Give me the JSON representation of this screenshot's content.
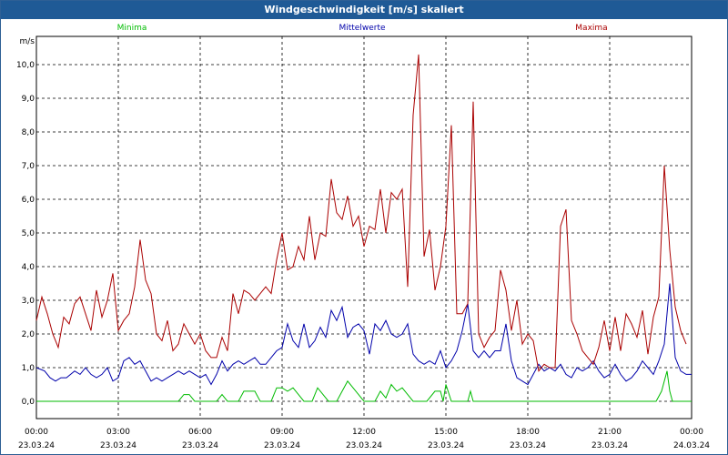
{
  "window": {
    "title": "Windgeschwindigkeit [m/s] skaliert"
  },
  "colors": {
    "min": "#00bb00",
    "mean": "#0000aa",
    "max": "#aa0000",
    "titlebar": "#1f5a96"
  },
  "chart_data": {
    "type": "line",
    "title": "Windgeschwindigkeit [m/s] skaliert",
    "ylabel": "m/s",
    "xlabel": "",
    "ylim": [
      0,
      10.5
    ],
    "xlim": [
      0,
      24
    ],
    "grid": true,
    "legend_placement": "top",
    "y_ticks": [
      "0,0",
      "1,0",
      "2,0",
      "3,0",
      "4,0",
      "5,0",
      "6,0",
      "7,0",
      "8,0",
      "9,0",
      "10,0"
    ],
    "x_ticks": [
      {
        "time": "00:00",
        "date": "23.03.24"
      },
      {
        "time": "03:00",
        "date": "23.03.24"
      },
      {
        "time": "06:00",
        "date": "23.03.24"
      },
      {
        "time": "09:00",
        "date": "23.03.24"
      },
      {
        "time": "12:00",
        "date": "23.03.24"
      },
      {
        "time": "15:00",
        "date": "23.03.24"
      },
      {
        "time": "18:00",
        "date": "23.03.24"
      },
      {
        "time": "21:00",
        "date": "23.03.24"
      },
      {
        "time": "00:00",
        "date": "24.03.24"
      }
    ],
    "series": [
      {
        "name": "Minima",
        "color": "#00bb00",
        "points": [
          [
            0,
            0
          ],
          [
            5.2,
            0
          ],
          [
            5.4,
            0.2
          ],
          [
            5.6,
            0.2
          ],
          [
            5.8,
            0
          ],
          [
            6.6,
            0
          ],
          [
            6.8,
            0.2
          ],
          [
            7.0,
            0
          ],
          [
            7.4,
            0
          ],
          [
            7.6,
            0.3
          ],
          [
            7.8,
            0.3
          ],
          [
            8.0,
            0.3
          ],
          [
            8.2,
            0
          ],
          [
            8.6,
            0
          ],
          [
            8.8,
            0.4
          ],
          [
            9.0,
            0.4
          ],
          [
            9.2,
            0.3
          ],
          [
            9.4,
            0.4
          ],
          [
            9.6,
            0.2
          ],
          [
            9.8,
            0
          ],
          [
            10.1,
            0
          ],
          [
            10.3,
            0.4
          ],
          [
            10.5,
            0.2
          ],
          [
            10.7,
            0
          ],
          [
            11.0,
            0
          ],
          [
            11.2,
            0.3
          ],
          [
            11.4,
            0.6
          ],
          [
            11.6,
            0.4
          ],
          [
            11.8,
            0.2
          ],
          [
            12.0,
            0
          ],
          [
            12.4,
            0
          ],
          [
            12.6,
            0.3
          ],
          [
            12.8,
            0.1
          ],
          [
            13.0,
            0.5
          ],
          [
            13.2,
            0.3
          ],
          [
            13.4,
            0.4
          ],
          [
            13.6,
            0.2
          ],
          [
            13.8,
            0
          ],
          [
            14.3,
            0
          ],
          [
            14.6,
            0.3
          ],
          [
            14.8,
            0.3
          ],
          [
            14.9,
            0
          ],
          [
            15.0,
            0.5
          ],
          [
            15.2,
            0
          ],
          [
            15.8,
            0
          ],
          [
            15.9,
            0.3
          ],
          [
            16.0,
            0
          ],
          [
            22.7,
            0
          ],
          [
            22.9,
            0.3
          ],
          [
            23.1,
            0.9
          ],
          [
            23.2,
            0.3
          ],
          [
            23.3,
            0
          ],
          [
            24,
            0
          ]
        ]
      },
      {
        "name": "Mittelwerte",
        "color": "#0000aa",
        "points": [
          [
            0,
            1.0
          ],
          [
            0.3,
            0.9
          ],
          [
            0.5,
            0.7
          ],
          [
            0.7,
            0.6
          ],
          [
            0.9,
            0.7
          ],
          [
            1.1,
            0.7
          ],
          [
            1.4,
            0.9
          ],
          [
            1.6,
            0.8
          ],
          [
            1.8,
            1.0
          ],
          [
            2.0,
            0.8
          ],
          [
            2.2,
            0.7
          ],
          [
            2.4,
            0.8
          ],
          [
            2.6,
            1.0
          ],
          [
            2.8,
            0.6
          ],
          [
            3.0,
            0.7
          ],
          [
            3.2,
            1.2
          ],
          [
            3.4,
            1.3
          ],
          [
            3.6,
            1.1
          ],
          [
            3.8,
            1.2
          ],
          [
            4.0,
            0.9
          ],
          [
            4.2,
            0.6
          ],
          [
            4.4,
            0.7
          ],
          [
            4.6,
            0.6
          ],
          [
            4.8,
            0.7
          ],
          [
            5.0,
            0.8
          ],
          [
            5.2,
            0.9
          ],
          [
            5.4,
            0.8
          ],
          [
            5.6,
            0.9
          ],
          [
            5.8,
            0.8
          ],
          [
            6.0,
            0.7
          ],
          [
            6.2,
            0.8
          ],
          [
            6.4,
            0.5
          ],
          [
            6.6,
            0.8
          ],
          [
            6.8,
            1.2
          ],
          [
            7.0,
            0.9
          ],
          [
            7.2,
            1.1
          ],
          [
            7.4,
            1.2
          ],
          [
            7.6,
            1.1
          ],
          [
            7.8,
            1.2
          ],
          [
            8.0,
            1.3
          ],
          [
            8.2,
            1.1
          ],
          [
            8.4,
            1.1
          ],
          [
            8.6,
            1.3
          ],
          [
            8.8,
            1.5
          ],
          [
            9.0,
            1.6
          ],
          [
            9.2,
            2.3
          ],
          [
            9.4,
            1.8
          ],
          [
            9.6,
            1.6
          ],
          [
            9.8,
            2.3
          ],
          [
            10.0,
            1.6
          ],
          [
            10.2,
            1.8
          ],
          [
            10.4,
            2.2
          ],
          [
            10.6,
            1.9
          ],
          [
            10.8,
            2.7
          ],
          [
            11.0,
            2.4
          ],
          [
            11.2,
            2.8
          ],
          [
            11.4,
            1.9
          ],
          [
            11.6,
            2.2
          ],
          [
            11.8,
            2.3
          ],
          [
            12.0,
            2.1
          ],
          [
            12.2,
            1.4
          ],
          [
            12.4,
            2.3
          ],
          [
            12.6,
            2.1
          ],
          [
            12.8,
            2.4
          ],
          [
            13.0,
            2.0
          ],
          [
            13.2,
            1.9
          ],
          [
            13.4,
            2.0
          ],
          [
            13.6,
            2.3
          ],
          [
            13.8,
            1.4
          ],
          [
            14.0,
            1.2
          ],
          [
            14.2,
            1.1
          ],
          [
            14.4,
            1.2
          ],
          [
            14.6,
            1.1
          ],
          [
            14.8,
            1.5
          ],
          [
            15.0,
            1.0
          ],
          [
            15.2,
            1.2
          ],
          [
            15.4,
            1.5
          ],
          [
            15.6,
            2.1
          ],
          [
            15.8,
            2.9
          ],
          [
            16.0,
            1.5
          ],
          [
            16.2,
            1.3
          ],
          [
            16.4,
            1.5
          ],
          [
            16.6,
            1.3
          ],
          [
            16.8,
            1.5
          ],
          [
            17.0,
            1.5
          ],
          [
            17.2,
            2.3
          ],
          [
            17.4,
            1.2
          ],
          [
            17.6,
            0.7
          ],
          [
            17.8,
            0.6
          ],
          [
            18.0,
            0.5
          ],
          [
            18.2,
            0.8
          ],
          [
            18.4,
            1.1
          ],
          [
            18.6,
            0.9
          ],
          [
            18.8,
            1.0
          ],
          [
            19.0,
            0.9
          ],
          [
            19.2,
            1.1
          ],
          [
            19.4,
            0.8
          ],
          [
            19.6,
            0.7
          ],
          [
            19.8,
            1.0
          ],
          [
            20.0,
            0.9
          ],
          [
            20.2,
            1.0
          ],
          [
            20.4,
            1.2
          ],
          [
            20.6,
            0.9
          ],
          [
            20.8,
            0.7
          ],
          [
            21.0,
            0.8
          ],
          [
            21.2,
            1.1
          ],
          [
            21.4,
            0.8
          ],
          [
            21.6,
            0.6
          ],
          [
            21.8,
            0.7
          ],
          [
            22.0,
            0.9
          ],
          [
            22.2,
            1.2
          ],
          [
            22.4,
            1.0
          ],
          [
            22.6,
            0.8
          ],
          [
            22.8,
            1.2
          ],
          [
            23.0,
            1.7
          ],
          [
            23.2,
            3.5
          ],
          [
            23.4,
            1.3
          ],
          [
            23.6,
            0.9
          ],
          [
            23.8,
            0.8
          ],
          [
            24.0,
            0.8
          ]
        ]
      },
      {
        "name": "Maxima",
        "color": "#aa0000",
        "points": [
          [
            0,
            2.4
          ],
          [
            0.2,
            3.1
          ],
          [
            0.4,
            2.6
          ],
          [
            0.6,
            2.0
          ],
          [
            0.8,
            1.6
          ],
          [
            1.0,
            2.5
          ],
          [
            1.2,
            2.3
          ],
          [
            1.4,
            2.9
          ],
          [
            1.6,
            3.1
          ],
          [
            1.8,
            2.6
          ],
          [
            2.0,
            2.1
          ],
          [
            2.2,
            3.3
          ],
          [
            2.4,
            2.5
          ],
          [
            2.6,
            3.0
          ],
          [
            2.8,
            3.8
          ],
          [
            3.0,
            2.1
          ],
          [
            3.2,
            2.4
          ],
          [
            3.4,
            2.6
          ],
          [
            3.6,
            3.4
          ],
          [
            3.8,
            4.8
          ],
          [
            4.0,
            3.6
          ],
          [
            4.2,
            3.2
          ],
          [
            4.4,
            2.0
          ],
          [
            4.6,
            1.8
          ],
          [
            4.8,
            2.4
          ],
          [
            5.0,
            1.5
          ],
          [
            5.2,
            1.7
          ],
          [
            5.4,
            2.3
          ],
          [
            5.6,
            2.0
          ],
          [
            5.8,
            1.7
          ],
          [
            6.0,
            2.0
          ],
          [
            6.2,
            1.5
          ],
          [
            6.4,
            1.3
          ],
          [
            6.6,
            1.3
          ],
          [
            6.8,
            1.9
          ],
          [
            7.0,
            1.5
          ],
          [
            7.2,
            3.2
          ],
          [
            7.4,
            2.6
          ],
          [
            7.6,
            3.3
          ],
          [
            7.8,
            3.2
          ],
          [
            8.0,
            3.0
          ],
          [
            8.2,
            3.2
          ],
          [
            8.4,
            3.4
          ],
          [
            8.6,
            3.2
          ],
          [
            8.8,
            4.2
          ],
          [
            9.0,
            5.0
          ],
          [
            9.2,
            3.9
          ],
          [
            9.4,
            4.0
          ],
          [
            9.6,
            4.6
          ],
          [
            9.8,
            4.2
          ],
          [
            10.0,
            5.5
          ],
          [
            10.2,
            4.2
          ],
          [
            10.4,
            5.0
          ],
          [
            10.6,
            4.9
          ],
          [
            10.8,
            6.6
          ],
          [
            11.0,
            5.6
          ],
          [
            11.2,
            5.4
          ],
          [
            11.4,
            6.1
          ],
          [
            11.6,
            5.2
          ],
          [
            11.8,
            5.5
          ],
          [
            12.0,
            4.6
          ],
          [
            12.2,
            5.2
          ],
          [
            12.4,
            5.1
          ],
          [
            12.6,
            6.3
          ],
          [
            12.8,
            5.0
          ],
          [
            13.0,
            6.2
          ],
          [
            13.2,
            6.0
          ],
          [
            13.4,
            6.3
          ],
          [
            13.6,
            3.4
          ],
          [
            13.8,
            8.5
          ],
          [
            14.0,
            10.3
          ],
          [
            14.2,
            4.3
          ],
          [
            14.4,
            5.1
          ],
          [
            14.6,
            3.3
          ],
          [
            14.8,
            4.0
          ],
          [
            15.0,
            5.2
          ],
          [
            15.2,
            8.2
          ],
          [
            15.4,
            2.6
          ],
          [
            15.6,
            2.6
          ],
          [
            15.8,
            2.9
          ],
          [
            16.0,
            8.9
          ],
          [
            16.2,
            2.0
          ],
          [
            16.4,
            1.6
          ],
          [
            16.6,
            1.9
          ],
          [
            16.8,
            2.1
          ],
          [
            17.0,
            3.9
          ],
          [
            17.2,
            3.3
          ],
          [
            17.4,
            2.1
          ],
          [
            17.6,
            3.0
          ],
          [
            17.8,
            1.7
          ],
          [
            18.0,
            2.0
          ],
          [
            18.2,
            1.8
          ],
          [
            18.4,
            0.9
          ],
          [
            18.6,
            1.1
          ],
          [
            18.8,
            1.0
          ],
          [
            19.0,
            1.0
          ],
          [
            19.2,
            5.2
          ],
          [
            19.4,
            5.7
          ],
          [
            19.6,
            2.4
          ],
          [
            19.8,
            2.0
          ],
          [
            20.0,
            1.5
          ],
          [
            20.2,
            1.3
          ],
          [
            20.4,
            1.1
          ],
          [
            20.6,
            1.6
          ],
          [
            20.8,
            2.4
          ],
          [
            21.0,
            1.5
          ],
          [
            21.2,
            2.5
          ],
          [
            21.4,
            1.5
          ],
          [
            21.6,
            2.6
          ],
          [
            21.8,
            2.3
          ],
          [
            22.0,
            1.9
          ],
          [
            22.2,
            2.7
          ],
          [
            22.4,
            1.4
          ],
          [
            22.6,
            2.5
          ],
          [
            22.8,
            3.1
          ],
          [
            23.0,
            7.0
          ],
          [
            23.2,
            4.5
          ],
          [
            23.4,
            2.8
          ],
          [
            23.6,
            2.1
          ],
          [
            23.8,
            1.7
          ]
        ]
      }
    ]
  }
}
